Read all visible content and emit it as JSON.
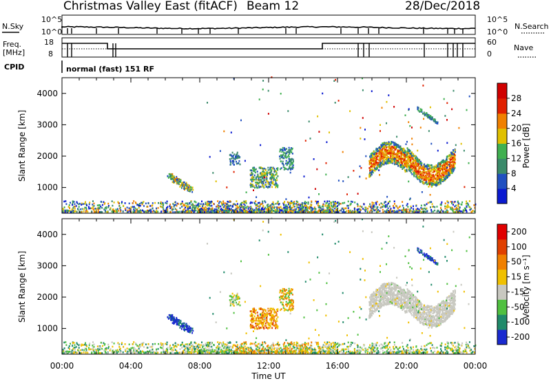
{
  "header": {
    "title": "Christmas Valley East (fitACF)",
    "beam": "Beam 12",
    "date": "28/Dec/2018"
  },
  "top_panels": {
    "nsky_label": "N.Sky",
    "nsky_ticks": [
      "10^5",
      "10^0"
    ],
    "nsearch_label": "N.Search",
    "nsearch_ticks": [
      "10^5",
      "10^0"
    ],
    "freq_label_line1": "Freq.",
    "freq_label_line2": "[MHz]",
    "freq_ticks": [
      "18",
      "8"
    ],
    "nave_label": "Nave",
    "nave_ticks": [
      "60",
      "0"
    ],
    "cpid_label": "CPID",
    "cpid_text": "normal (fast) 151 RF"
  },
  "chart_data": [
    {
      "type": "heatmap",
      "name": "power",
      "ylabel": "Slant Range [km]",
      "yticks": [
        "1000",
        "2000",
        "3000",
        "4000"
      ],
      "ylim": [
        180,
        4500
      ],
      "colorbar_label": "Power [dB]",
      "colorbar_ticks": [
        "4",
        "8",
        "12",
        "16",
        "20",
        "24",
        "28"
      ],
      "colorbar_range": [
        0,
        32
      ],
      "colorbar_colors": [
        "#0a1ad0",
        "#2050c0",
        "#3a8a6a",
        "#40b050",
        "#e0c000",
        "#f08000",
        "#e02000",
        "#d00000"
      ]
    },
    {
      "type": "heatmap",
      "name": "velocity",
      "ylabel": "Slant Range [km]",
      "yticks": [
        "1000",
        "2000",
        "3000",
        "4000"
      ],
      "ylim": [
        180,
        4500
      ],
      "xlabel": "Time UT",
      "xticks": [
        "00:00",
        "04:00",
        "08:00",
        "12:00",
        "16:00",
        "20:00",
        "00:00"
      ],
      "colorbar_label": "Velocity [m s⁻¹]",
      "colorbar_ticks": [
        "200",
        "100",
        "50",
        "15",
        "-15",
        "-50",
        "-100",
        "-200"
      ],
      "colorbar_colors": [
        "#1a2ad0",
        "#208a6a",
        "#50c040",
        "#c8c8c0",
        "#f0c000",
        "#f08000",
        "#e04000",
        "#e00000"
      ]
    }
  ],
  "colors": {
    "power_low": "#1030d0",
    "power_mid": "#40a050",
    "power_high": "#f07000",
    "vel_positive": "#2040c0",
    "vel_ground": "#c8c8c0",
    "vel_negative": "#f0a000"
  }
}
